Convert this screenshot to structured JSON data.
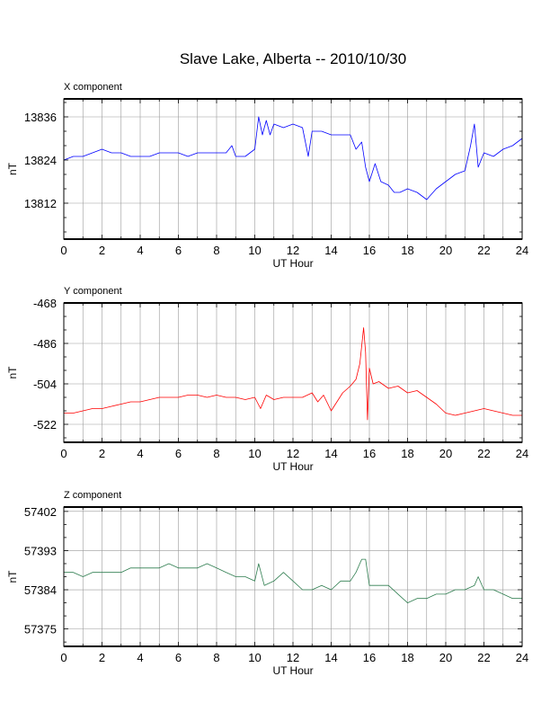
{
  "title": "Slave Lake, Alberta -- 2010/10/30",
  "chart_data": [
    {
      "type": "line",
      "title": "X component",
      "xlabel": "UT Hour",
      "ylabel": "nT",
      "xlim": [
        0,
        24
      ],
      "ylim": [
        13802,
        13841
      ],
      "x_ticks": [
        0,
        2,
        4,
        6,
        8,
        10,
        12,
        14,
        16,
        18,
        20,
        22,
        24
      ],
      "y_ticks": [
        13812,
        13824,
        13836
      ],
      "grid": true,
      "color": "#0000ff",
      "series": [
        {
          "x": [
            0,
            0.5,
            1,
            1.5,
            2,
            2.5,
            3,
            3.5,
            4,
            4.5,
            5,
            5.5,
            6,
            6.5,
            7,
            7.5,
            8,
            8.5,
            8.8,
            9,
            9.5,
            10,
            10.2,
            10.4,
            10.6,
            10.8,
            11,
            11.5,
            12,
            12.5,
            12.8,
            13,
            13.5,
            14,
            14.5,
            15,
            15.3,
            15.6,
            15.8,
            16,
            16.3,
            16.6,
            17,
            17.3,
            17.6,
            18,
            18.5,
            19,
            19.5,
            20,
            20.5,
            21,
            21.3,
            21.5,
            21.7,
            22,
            22.5,
            23,
            23.5,
            24
          ],
          "y": [
            13824,
            13825,
            13825,
            13826,
            13827,
            13826,
            13826,
            13825,
            13825,
            13825,
            13826,
            13826,
            13826,
            13825,
            13826,
            13826,
            13826,
            13826,
            13828,
            13825,
            13825,
            13827,
            13836,
            13831,
            13835,
            13831,
            13834,
            13833,
            13834,
            13833,
            13825,
            13832,
            13832,
            13831,
            13831,
            13831,
            13827,
            13829,
            13822,
            13818,
            13823,
            13818,
            13817,
            13815,
            13815,
            13816,
            13815,
            13813,
            13816,
            13818,
            13820,
            13821,
            13828,
            13834,
            13822,
            13826,
            13825,
            13827,
            13828,
            13830
          ]
        }
      ]
    },
    {
      "type": "line",
      "title": "Y component",
      "xlabel": "UT Hour",
      "ylabel": "nT",
      "xlim": [
        0,
        24
      ],
      "ylim": [
        -530,
        -468
      ],
      "x_ticks": [
        0,
        2,
        4,
        6,
        8,
        10,
        12,
        14,
        16,
        18,
        20,
        22,
        24
      ],
      "y_ticks": [
        -468,
        -486,
        -504,
        -522
      ],
      "grid": true,
      "color": "#ff0000",
      "series": [
        {
          "x": [
            0,
            0.5,
            1,
            1.5,
            2,
            2.5,
            3,
            3.5,
            4,
            4.5,
            5,
            5.5,
            6,
            6.5,
            7,
            7.5,
            8,
            8.5,
            9,
            9.5,
            10,
            10.3,
            10.6,
            11,
            11.5,
            12,
            12.5,
            13,
            13.3,
            13.6,
            14,
            14.3,
            14.6,
            15,
            15.3,
            15.5,
            15.7,
            15.8,
            15.9,
            16,
            16.2,
            16.5,
            17,
            17.5,
            18,
            18.5,
            19,
            19.5,
            20,
            20.5,
            21,
            21.5,
            22,
            22.5,
            23,
            23.5,
            24
          ],
          "y": [
            -517,
            -517,
            -516,
            -515,
            -515,
            -514,
            -513,
            -512,
            -512,
            -511,
            -510,
            -510,
            -510,
            -509,
            -509,
            -510,
            -509,
            -510,
            -510,
            -511,
            -510,
            -515,
            -509,
            -511,
            -510,
            -510,
            -510,
            -508,
            -512,
            -509,
            -516,
            -512,
            -508,
            -505,
            -502,
            -495,
            -479,
            -490,
            -520,
            -497,
            -504,
            -503,
            -506,
            -505,
            -508,
            -507,
            -510,
            -513,
            -517,
            -518,
            -517,
            -516,
            -515,
            -516,
            -517,
            -518,
            -518
          ]
        }
      ]
    },
    {
      "type": "line",
      "title": "Z component",
      "xlabel": "UT Hour",
      "ylabel": "nT",
      "xlim": [
        0,
        24
      ],
      "ylim": [
        57371,
        57403
      ],
      "x_ticks": [
        0,
        2,
        4,
        6,
        8,
        10,
        12,
        14,
        16,
        18,
        20,
        22,
        24
      ],
      "y_ticks": [
        57402,
        57393,
        57384,
        57375
      ],
      "grid": true,
      "color": "#2e7d4f",
      "series": [
        {
          "x": [
            0,
            0.5,
            1,
            1.5,
            2,
            2.5,
            3,
            3.5,
            4,
            4.5,
            5,
            5.5,
            6,
            6.5,
            7,
            7.5,
            8,
            8.5,
            9,
            9.5,
            10,
            10.2,
            10.5,
            11,
            11.5,
            12,
            12.5,
            13,
            13.5,
            14,
            14.5,
            15,
            15.3,
            15.6,
            15.8,
            16,
            16.5,
            17,
            17.5,
            18,
            18.5,
            19,
            19.5,
            20,
            20.5,
            21,
            21.5,
            21.7,
            22,
            22.5,
            23,
            23.5,
            24
          ],
          "y": [
            57388,
            57388,
            57387,
            57388,
            57388,
            57388,
            57388,
            57389,
            57389,
            57389,
            57389,
            57390,
            57389,
            57389,
            57389,
            57390,
            57389,
            57388,
            57387,
            57387,
            57386,
            57390,
            57385,
            57386,
            57388,
            57386,
            57384,
            57384,
            57385,
            57384,
            57386,
            57386,
            57388,
            57391,
            57391,
            57385,
            57385,
            57385,
            57383,
            57381,
            57382,
            57382,
            57383,
            57383,
            57384,
            57384,
            57385,
            57387,
            57384,
            57384,
            57383,
            57382,
            57382
          ]
        }
      ]
    }
  ]
}
